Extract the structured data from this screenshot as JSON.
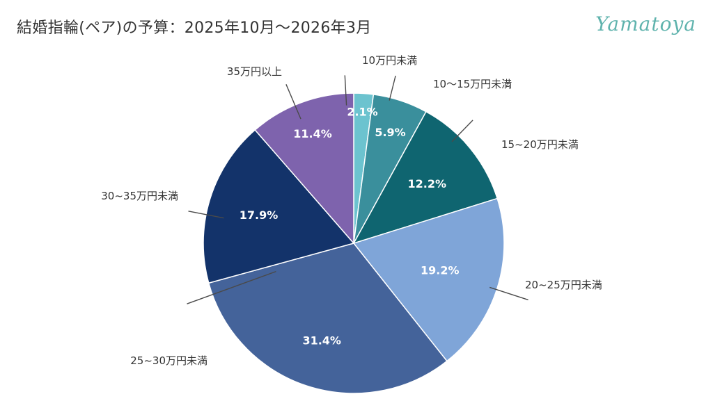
{
  "page": {
    "title": "結婚指輪(ペア)の予算：2025年10月〜2026年3月",
    "logo_text": "Yamatoya"
  },
  "chart_data": {
    "type": "pie",
    "title": "結婚指輪(ペア)の予算：2025年10月〜2026年3月",
    "categories": [
      "10万円未満",
      "10〜15万円未満",
      "15~20万円未満",
      "20~25万円未満",
      "25~30万円未満",
      "30~35万円未満",
      "35万円以上"
    ],
    "values": [
      2.1,
      5.9,
      12.2,
      19.2,
      31.4,
      17.9,
      11.4
    ],
    "value_labels": [
      "2.1%",
      "5.9%",
      "12.2%",
      "19.2%",
      "31.4%",
      "17.9%",
      "11.4%"
    ],
    "colors": [
      "#6cc3cf",
      "#3a8f9c",
      "#0f6570",
      "#7fa5d8",
      "#44639a",
      "#13336a",
      "#7e63ad"
    ],
    "start": "12 o'clock",
    "direction": "clockwise",
    "legend": "none"
  }
}
